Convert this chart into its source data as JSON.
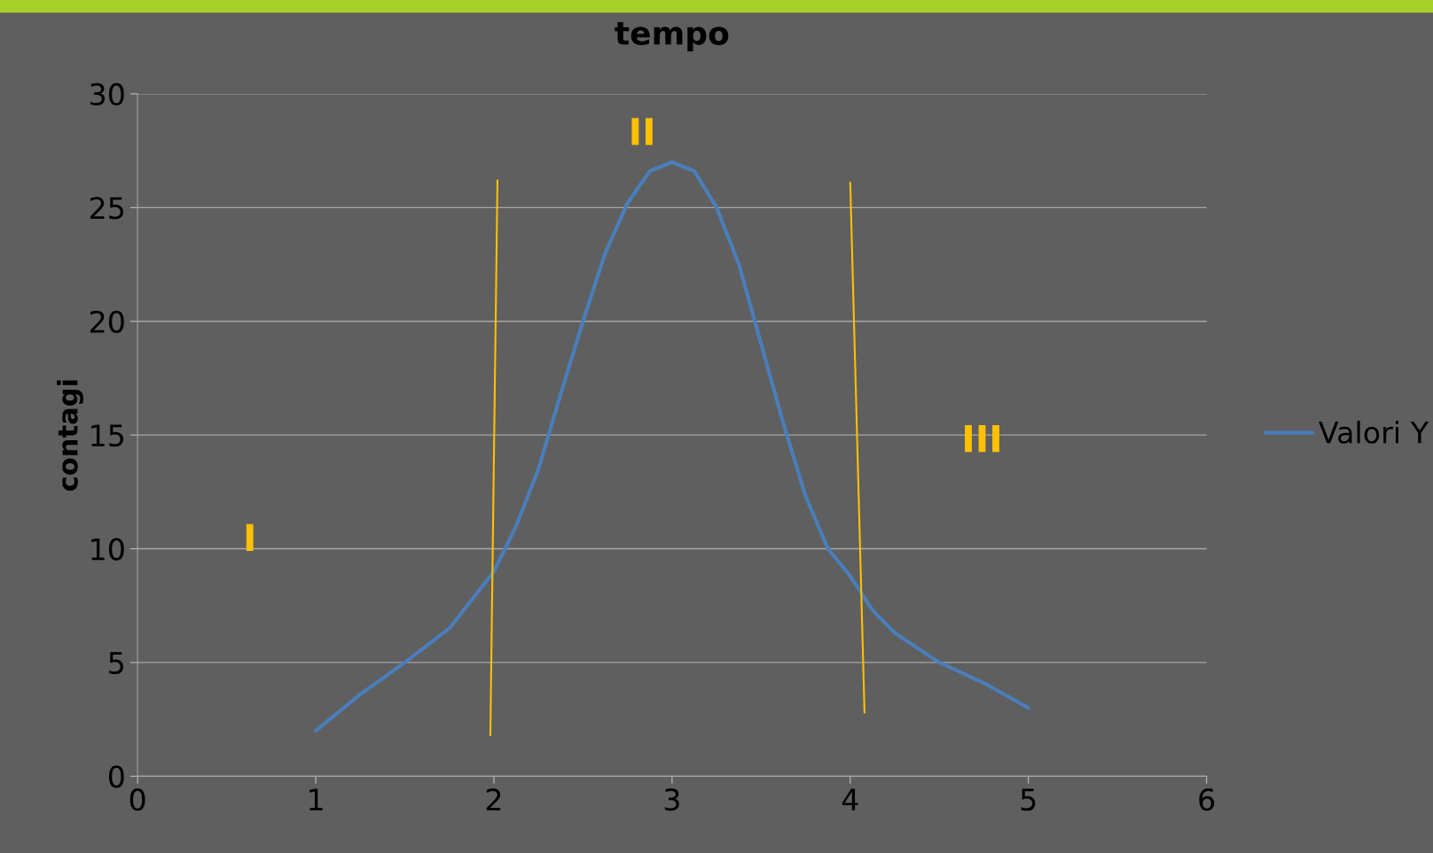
{
  "chart_data": {
    "type": "line",
    "title": "tempo",
    "ylabel": "contagi",
    "x": [
      1,
      1.25,
      1.5,
      1.75,
      2,
      2.125,
      2.25,
      2.375,
      2.5,
      2.625,
      2.75,
      2.875,
      3,
      3.125,
      3.25,
      3.375,
      3.5,
      3.625,
      3.75,
      3.875,
      4,
      4.125,
      4.25,
      4.5,
      4.75,
      5
    ],
    "series": [
      {
        "name": "Valori Y",
        "color": "#4a7ebb",
        "values": [
          2,
          3.6,
          5,
          6.5,
          9,
          11,
          13.5,
          16.8,
          20,
          23,
          25.2,
          26.6,
          27,
          26.6,
          25,
          22.5,
          19,
          15.5,
          12.3,
          10,
          8.8,
          7.3,
          6.3,
          5,
          4.1,
          3
        ]
      },
      {
        "type": "line",
        "color": "#ffc000",
        "x": [
          2.02,
          1.98
        ],
        "values": [
          26.2,
          1.8
        ]
      },
      {
        "type": "line",
        "color": "#ffc000",
        "x": [
          4.0,
          4.08
        ],
        "values": [
          26.1,
          2.8
        ]
      }
    ],
    "annotations": [
      "I",
      "II",
      "III"
    ],
    "xlim": [
      0,
      6
    ],
    "xticks": [
      0,
      1,
      2,
      3,
      4,
      5,
      6
    ],
    "ylim": [
      0,
      30
    ],
    "yticks": [
      0,
      5,
      10,
      15,
      20,
      25,
      30
    ],
    "grid": "y",
    "legend": "right"
  }
}
